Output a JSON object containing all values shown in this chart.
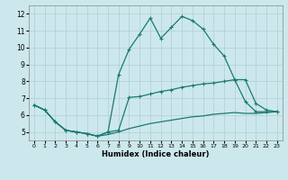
{
  "title": "",
  "xlabel": "Humidex (Indice chaleur)",
  "xlim": [
    -0.5,
    23.5
  ],
  "ylim": [
    4.5,
    12.5
  ],
  "yticks": [
    5,
    6,
    7,
    8,
    9,
    10,
    11,
    12
  ],
  "xticks": [
    0,
    1,
    2,
    3,
    4,
    5,
    6,
    7,
    8,
    9,
    10,
    11,
    12,
    13,
    14,
    15,
    16,
    17,
    18,
    19,
    20,
    21,
    22,
    23
  ],
  "bg_color": "#cce8ec",
  "grid_color": "#b0cdd1",
  "line_color": "#1a7a70",
  "line1_x": [
    0,
    1,
    2,
    3,
    4,
    5,
    6,
    7,
    8,
    9,
    10,
    11,
    12,
    13,
    14,
    15,
    16,
    17,
    18,
    19,
    20,
    21,
    22,
    23
  ],
  "line1_y": [
    6.6,
    6.3,
    5.6,
    5.1,
    5.0,
    4.9,
    4.75,
    5.0,
    8.4,
    9.9,
    10.8,
    11.75,
    10.55,
    11.2,
    11.85,
    11.6,
    11.1,
    10.2,
    9.5,
    8.1,
    6.8,
    6.2,
    6.2,
    6.2
  ],
  "line2_x": [
    0,
    1,
    2,
    3,
    4,
    5,
    6,
    7,
    8,
    9,
    10,
    11,
    12,
    13,
    14,
    15,
    16,
    17,
    18,
    19,
    20,
    21,
    22,
    23
  ],
  "line2_y": [
    6.6,
    6.3,
    5.6,
    5.1,
    5.0,
    4.9,
    4.75,
    5.0,
    5.1,
    7.05,
    7.1,
    7.25,
    7.4,
    7.5,
    7.65,
    7.75,
    7.85,
    7.9,
    8.0,
    8.1,
    8.1,
    6.7,
    6.3,
    6.2
  ],
  "line3_x": [
    0,
    1,
    2,
    3,
    4,
    5,
    6,
    7,
    8,
    9,
    10,
    11,
    12,
    13,
    14,
    15,
    16,
    17,
    18,
    19,
    20,
    21,
    22,
    23
  ],
  "line3_y": [
    6.6,
    6.3,
    5.6,
    5.1,
    5.0,
    4.9,
    4.75,
    4.85,
    5.0,
    5.2,
    5.35,
    5.5,
    5.6,
    5.7,
    5.8,
    5.9,
    5.95,
    6.05,
    6.1,
    6.15,
    6.1,
    6.1,
    6.15,
    6.2
  ]
}
